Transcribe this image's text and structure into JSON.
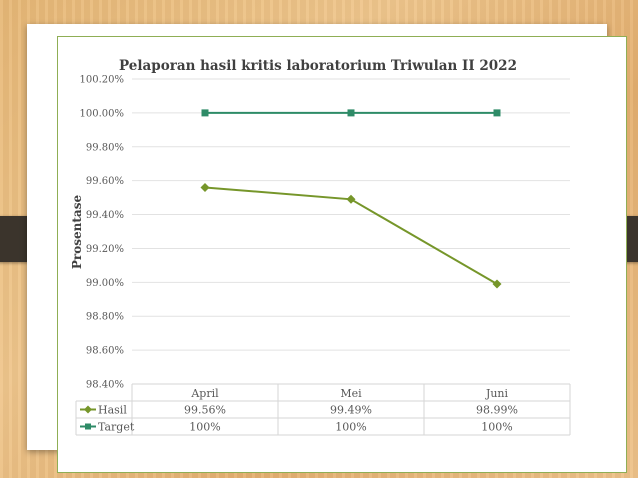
{
  "colors": {
    "hasil": "#76962a",
    "target": "#2e8b67",
    "grid": "#e2e2e2",
    "text": "#595959",
    "frame": "#8fae55"
  },
  "chart_data": {
    "type": "line",
    "title": "Pelaporan hasil kritis laboratorium Triwulan II 2022",
    "xlabel": "",
    "ylabel": "Prosentase",
    "categories": [
      "April",
      "Mei",
      "Juni"
    ],
    "ylim": [
      98.4,
      100.2
    ],
    "ytick_step": 0.2,
    "yticks": [
      "100.20%",
      "100.00%",
      "99.80%",
      "99.60%",
      "99.40%",
      "99.20%",
      "99.00%",
      "98.80%",
      "98.60%",
      "98.40%"
    ],
    "grid": true,
    "legend": "data-table",
    "series": [
      {
        "name": "Hasil",
        "values": [
          99.56,
          99.49,
          98.99
        ],
        "labels": [
          "99.56%",
          "99.49%",
          "98.99%"
        ],
        "marker": "diamond",
        "color": "#76962a"
      },
      {
        "name": "Target",
        "values": [
          100.0,
          100.0,
          100.0
        ],
        "labels": [
          "100%",
          "100%",
          "100%"
        ],
        "marker": "square",
        "color": "#2e8b67"
      }
    ]
  }
}
